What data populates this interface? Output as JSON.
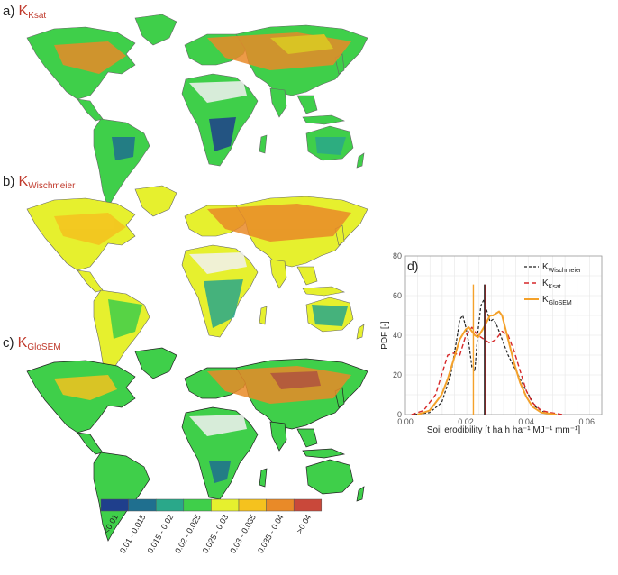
{
  "panels": [
    {
      "letter": "a)",
      "k": "K",
      "sub": "Ksat"
    },
    {
      "letter": "b)",
      "k": "K",
      "sub": "Wischmeier"
    },
    {
      "letter": "c)",
      "k": "K",
      "sub": "GloSEM"
    }
  ],
  "legend": {
    "classes": [
      "<0.01",
      "0.01 - 0.015",
      "0.015 - 0.02",
      "0.02 - 0.025",
      "0.025 - 0.03",
      "0.03 - 0.035",
      "0.035 - 0.04",
      ">0.04"
    ],
    "colors": [
      "#1f3f8c",
      "#1f6f8f",
      "#2aa88a",
      "#3fcf4a",
      "#e6f02e",
      "#f5c21e",
      "#e98a28",
      "#c9483a"
    ]
  },
  "chart_data": {
    "type": "line",
    "panel_label": "d)",
    "xlabel": "Soil erodibility [t ha h ha⁻¹ MJ⁻¹ mm⁻¹]",
    "ylabel": "PDF [-]",
    "xlim": [
      0,
      0.065
    ],
    "ylim": [
      0,
      80
    ],
    "xticks": [
      "0.00",
      "0.02",
      "0.04",
      "0.06"
    ],
    "xtick_values": [
      0,
      0.02,
      0.04,
      0.06
    ],
    "yticks": [
      "0",
      "20",
      "40",
      "60",
      "80"
    ],
    "ytick_values": [
      0,
      20,
      40,
      60,
      80
    ],
    "grid": true,
    "legend_position": "top-right",
    "series": [
      {
        "name": "K",
        "sub": "Wischmeier",
        "color": "#222222",
        "dash": "3,2",
        "width": 1.2,
        "x": [
          0.003,
          0.008,
          0.012,
          0.015,
          0.017,
          0.018,
          0.019,
          0.02,
          0.021,
          0.022,
          0.023,
          0.024,
          0.025,
          0.026,
          0.027,
          0.028,
          0.029,
          0.03,
          0.031,
          0.032,
          0.034,
          0.036,
          0.038,
          0.04,
          0.043,
          0.046,
          0.05
        ],
        "y": [
          0,
          1,
          6,
          20,
          38,
          48,
          50,
          44,
          36,
          24,
          22,
          42,
          55,
          58,
          52,
          47,
          48,
          46,
          42,
          38,
          30,
          24,
          18,
          12,
          4,
          1,
          0
        ],
        "mean": 0.0262
      },
      {
        "name": "K",
        "sub": "Ksat",
        "color": "#d62728",
        "dash": "5,3",
        "width": 1.4,
        "x": [
          0.002,
          0.006,
          0.01,
          0.012,
          0.014,
          0.016,
          0.018,
          0.02,
          0.022,
          0.024,
          0.026,
          0.028,
          0.03,
          0.032,
          0.034,
          0.036,
          0.038,
          0.04,
          0.042,
          0.045,
          0.048,
          0.052
        ],
        "y": [
          0,
          2,
          10,
          20,
          30,
          31,
          30,
          40,
          44,
          40,
          38,
          36,
          38,
          42,
          40,
          32,
          22,
          12,
          6,
          2,
          1,
          0
        ],
        "mean": 0.0266
      },
      {
        "name": "K",
        "sub": "GloSEM",
        "color": "#f4a12a",
        "dash": "",
        "width": 2.0,
        "x": [
          0.004,
          0.008,
          0.012,
          0.014,
          0.016,
          0.018,
          0.02,
          0.021,
          0.022,
          0.023,
          0.024,
          0.026,
          0.028,
          0.029,
          0.03,
          0.031,
          0.032,
          0.033,
          0.034,
          0.036,
          0.038,
          0.04,
          0.042,
          0.045,
          0.05
        ],
        "y": [
          0,
          2,
          10,
          18,
          28,
          38,
          43,
          44,
          42,
          40,
          39,
          44,
          50,
          50,
          51,
          52,
          50,
          44,
          38,
          26,
          16,
          9,
          4,
          1,
          0
        ],
        "mean": 0.0225
      }
    ]
  }
}
